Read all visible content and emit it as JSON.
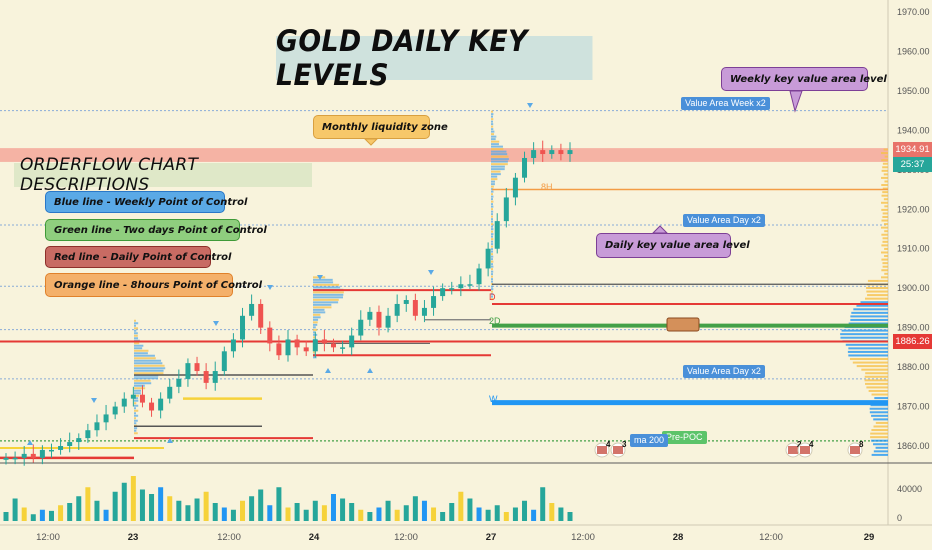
{
  "title": "GOLD DAILY KEY LEVELS",
  "subtitle": "ORDERFLOW CHART DESCRIPTIONS",
  "legend": [
    {
      "label": "Blue line - Weekly Point of Control",
      "color": "#5aa9e6",
      "border": "#2a78c8"
    },
    {
      "label": "Green line - Two days Point of Control",
      "color": "#8fce7e",
      "border": "#3f9a38"
    },
    {
      "label": "Red line - Daily Point of Control",
      "color": "#c86b63",
      "border": "#8e2f2a"
    },
    {
      "label": "Orange line - 8hours Point of Control",
      "color": "#f4b06a",
      "border": "#e0812a"
    }
  ],
  "annotations": {
    "monthly": "Monthly liquidity zone",
    "weekly": "Weekly key value area level",
    "daily": "Daily key value area level"
  },
  "labels": {
    "va_week": "Value Area Week x2",
    "va_day_1": "Value Area Day x2",
    "va_day_2": "Value Area Day x2",
    "pre_poc": "Pre-POC",
    "ma200": "ma 200",
    "h8": "8H",
    "w": "W",
    "d": "D",
    "d2": "2D"
  },
  "price_axis": {
    "ticks": [
      "1970.00",
      "1960.00",
      "1950.00",
      "1940.00",
      "1930.00",
      "1920.00",
      "1910.00",
      "1900.00",
      "1890.00",
      "1880.00",
      "1870.00",
      "1860.00"
    ],
    "current_price": "1934.91",
    "countdown": "25:37",
    "red_level": "1886.26"
  },
  "volume_axis": {
    "ticks": [
      "40000",
      "0"
    ]
  },
  "time_axis": {
    "ticks": [
      "12:00",
      "23",
      "12:00",
      "24",
      "12:00",
      "27",
      "12:00",
      "28",
      "12:00",
      "29"
    ]
  },
  "event_badges": [
    "4",
    "3",
    "2",
    "4",
    "8"
  ],
  "colors": {
    "up": "#26a69a",
    "down": "#ef5350",
    "weekly_poc": "#2196f3",
    "two_day_poc": "#43a047",
    "daily_poc": "#e53935",
    "h8_poc": "#f6c343",
    "liquidity_zone": "#f4a79a"
  },
  "chart_data": {
    "type": "candlestick",
    "title": "GOLD DAILY KEY LEVELS",
    "ylim": [
      1855,
      1975
    ],
    "y_ticks": [
      1860,
      1870,
      1880,
      1890,
      1900,
      1910,
      1920,
      1930,
      1940,
      1950,
      1960,
      1970
    ],
    "close_path": [
      1857,
      1857,
      1858,
      1857,
      1859,
      1859,
      1860,
      1861,
      1862,
      1864,
      1866,
      1868,
      1870,
      1872,
      1873,
      1871,
      1869,
      1872,
      1875,
      1877,
      1881,
      1879,
      1876,
      1879,
      1884,
      1887,
      1893,
      1896,
      1890,
      1886,
      1883,
      1887,
      1885,
      1884,
      1887,
      1886,
      1885,
      1885,
      1888,
      1892,
      1894,
      1890,
      1893,
      1896,
      1897,
      1893,
      1895,
      1898,
      1900,
      1900,
      1901,
      1901,
      1905,
      1910,
      1917,
      1923,
      1928,
      1933,
      1935,
      1934,
      1935,
      1934,
      1935
    ],
    "weekly_poc": 1871,
    "two_day_poc": 1890.5,
    "daily_poc": 1886.5,
    "h8_poc": 1925,
    "current_price": 1934.91,
    "red_level": 1886.26,
    "value_area_week": 1945,
    "value_area_day_upper": 1916,
    "value_area_day_lower": 1877,
    "liquidity_zone": [
      1932,
      1935.5
    ]
  }
}
